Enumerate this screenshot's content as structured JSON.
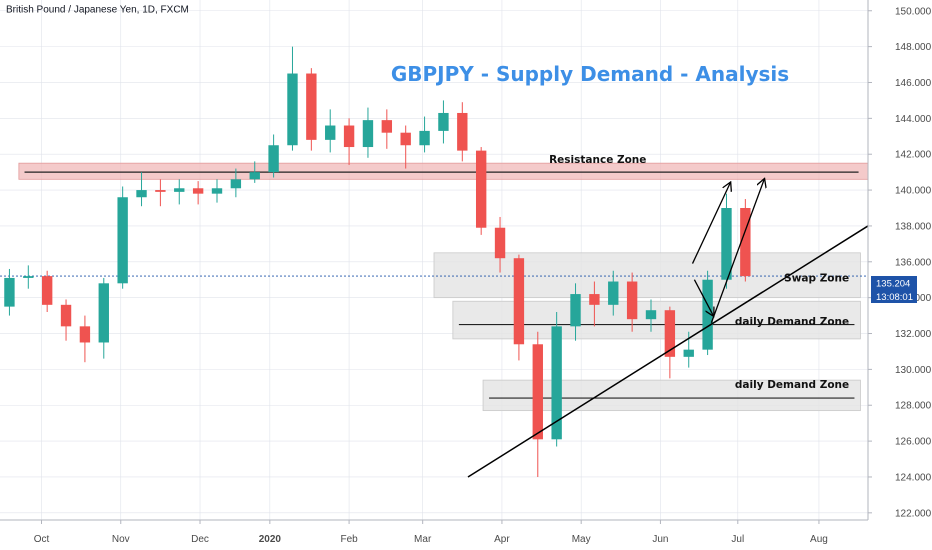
{
  "header": {
    "symbol_label": "British Pound / Japanese Yen, 1D, FXCM"
  },
  "chart_data": {
    "type": "candlestick",
    "title": "GBPJPY - Supply Demand - Analysis",
    "ylim": [
      121.6,
      150.6
    ],
    "xlim": [
      0,
      46
    ],
    "y_ticks": [
      {
        "value": 122,
        "label": "122.000"
      },
      {
        "value": 124,
        "label": "124.000"
      },
      {
        "value": 126,
        "label": "126.000"
      },
      {
        "value": 128,
        "label": "128.000"
      },
      {
        "value": 130,
        "label": "130.000"
      },
      {
        "value": 132,
        "label": "132.000"
      },
      {
        "value": 134,
        "label": "134.000"
      },
      {
        "value": 136,
        "label": "136.000"
      },
      {
        "value": 138,
        "label": "138.000"
      },
      {
        "value": 140,
        "label": "140.000"
      },
      {
        "value": 142,
        "label": "142.000"
      },
      {
        "value": 144,
        "label": "144.000"
      },
      {
        "value": 146,
        "label": "146.000"
      },
      {
        "value": 148,
        "label": "148.000"
      },
      {
        "value": 150,
        "label": "150.000"
      }
    ],
    "x_ticks": [
      {
        "week": 2.2,
        "label": "Oct"
      },
      {
        "week": 6.4,
        "label": "Nov"
      },
      {
        "week": 10.6,
        "label": "Dec"
      },
      {
        "week": 14.3,
        "label": "2020"
      },
      {
        "week": 18.5,
        "label": "Feb"
      },
      {
        "week": 22.4,
        "label": "Mar"
      },
      {
        "week": 26.6,
        "label": "Apr"
      },
      {
        "week": 30.8,
        "label": "May"
      },
      {
        "week": 35.0,
        "label": "Jun"
      },
      {
        "week": 39.1,
        "label": "Jul"
      },
      {
        "week": 43.4,
        "label": "Aug"
      }
    ],
    "candles": [
      [
        133.5,
        135.1,
        133.0,
        135.6
      ],
      [
        135.1,
        135.2,
        134.5,
        135.8
      ],
      [
        135.2,
        133.6,
        133.2,
        135.5
      ],
      [
        133.6,
        132.4,
        131.6,
        133.9
      ],
      [
        132.4,
        131.5,
        130.4,
        133.0
      ],
      [
        131.5,
        134.8,
        130.6,
        135.1
      ],
      [
        134.8,
        139.6,
        134.5,
        140.2
      ],
      [
        139.6,
        140.0,
        139.1,
        141.0
      ],
      [
        140.0,
        139.9,
        139.1,
        140.6
      ],
      [
        139.9,
        140.1,
        139.2,
        140.6
      ],
      [
        140.1,
        139.8,
        139.2,
        140.5
      ],
      [
        139.8,
        140.1,
        139.3,
        140.6
      ],
      [
        140.1,
        140.6,
        139.6,
        141.2
      ],
      [
        140.6,
        141.0,
        140.4,
        141.6
      ],
      [
        141.0,
        142.5,
        140.7,
        143.1
      ],
      [
        142.5,
        146.5,
        142.2,
        148.0
      ],
      [
        146.5,
        142.8,
        142.2,
        146.8
      ],
      [
        142.8,
        143.6,
        142.1,
        144.5
      ],
      [
        143.6,
        142.4,
        141.4,
        144.0
      ],
      [
        142.4,
        143.9,
        141.8,
        144.6
      ],
      [
        143.9,
        143.2,
        142.3,
        144.5
      ],
      [
        143.2,
        142.5,
        141.2,
        143.6
      ],
      [
        142.5,
        143.3,
        142.1,
        144.1
      ],
      [
        143.3,
        144.3,
        142.6,
        145.0
      ],
      [
        144.3,
        142.2,
        141.6,
        144.9
      ],
      [
        142.2,
        137.9,
        137.5,
        142.4
      ],
      [
        137.9,
        136.2,
        135.4,
        138.5
      ],
      [
        136.2,
        131.4,
        130.5,
        136.4
      ],
      [
        131.4,
        126.1,
        124.0,
        132.1
      ],
      [
        126.1,
        132.4,
        125.7,
        133.2
      ],
      [
        132.4,
        134.2,
        131.6,
        134.8
      ],
      [
        134.2,
        133.6,
        132.4,
        134.9
      ],
      [
        133.6,
        134.9,
        133.0,
        135.5
      ],
      [
        134.9,
        132.8,
        132.1,
        135.4
      ],
      [
        132.8,
        133.3,
        132.1,
        133.9
      ],
      [
        133.3,
        130.7,
        129.5,
        133.5
      ],
      [
        130.7,
        131.1,
        130.1,
        132.1
      ],
      [
        131.1,
        135.0,
        130.8,
        135.5
      ],
      [
        135.0,
        139.0,
        134.5,
        139.8
      ],
      [
        139.0,
        135.2,
        134.9,
        139.5
      ]
    ],
    "last_price": "135.204",
    "countdown": "13:08:01",
    "zones": [
      {
        "label": "Resistance Zone",
        "y_low": 140.6,
        "y_high": 141.5,
        "level": 141.0,
        "x_start": 1.0,
        "x_end": 46
      },
      {
        "label": "Swap Zone",
        "y_low": 134.0,
        "y_high": 136.5,
        "x_start": 23.0,
        "x_end": 45.6
      },
      {
        "label": "daily Demand Zone",
        "y_low": 131.7,
        "y_high": 133.8,
        "level": 132.5,
        "x_start": 24.0,
        "x_end": 45.6
      },
      {
        "label": "daily Demand Zone",
        "y_low": 127.7,
        "y_high": 129.4,
        "level": 128.4,
        "x_start": 25.6,
        "x_end": 45.6
      }
    ],
    "trendline": {
      "x1": 24.8,
      "y1": 124.0,
      "x2": 46.0,
      "y2": 138.0
    },
    "projection_arrows": [
      {
        "from": [
          36.7,
          135.9
        ],
        "to": [
          38.7,
          140.4
        ]
      },
      {
        "from": [
          37.7,
          132.6
        ],
        "to": [
          40.5,
          140.6
        ]
      },
      {
        "from": [
          36.8,
          135.0
        ],
        "to": [
          37.8,
          133.0
        ]
      }
    ],
    "colors": {
      "up": "#26a69a",
      "down": "#ef5350",
      "last_price": "#1e53a8",
      "title": "#3d8fe6",
      "grid": "#e0e3eb",
      "resistance": "#f0b8b8"
    }
  }
}
